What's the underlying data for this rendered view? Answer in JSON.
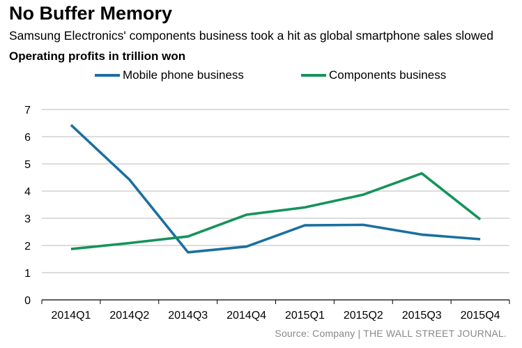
{
  "chart_data": {
    "type": "line",
    "title": "No Buffer Memory",
    "subtitle": "Samsung Electronics' components business took a hit as global smartphone sales slowed",
    "ylabel": "Operating profits in trillion won",
    "xlabel": "",
    "categories": [
      "2014Q1",
      "2014Q2",
      "2014Q3",
      "2014Q4",
      "2015Q1",
      "2015Q2",
      "2015Q3",
      "2015Q4"
    ],
    "ylim": [
      0,
      7
    ],
    "yticks": [
      0,
      1,
      2,
      3,
      4,
      5,
      6,
      7
    ],
    "grid": true,
    "legend_position": "top-center",
    "series": [
      {
        "name": "Mobile phone business",
        "color": "#1a6fa0",
        "values": [
          6.43,
          4.42,
          1.75,
          1.96,
          2.74,
          2.76,
          2.4,
          2.23
        ]
      },
      {
        "name": "Components business",
        "color": "#14935a",
        "values": [
          1.87,
          2.09,
          2.33,
          3.13,
          3.4,
          3.87,
          4.65,
          2.96
        ]
      }
    ],
    "source": "Source: Company  |  THE WALL STREET JOURNAL."
  }
}
